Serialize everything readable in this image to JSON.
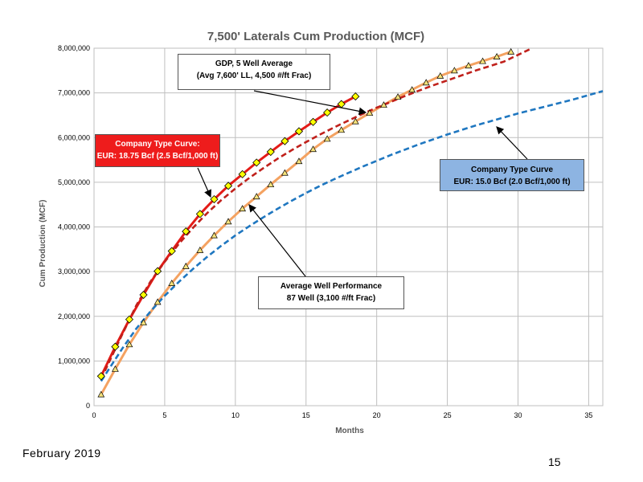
{
  "footer": {
    "date": "February  2019",
    "page": "15"
  },
  "colors": {
    "company_18_75": "#e41b17",
    "company_15": "#1f77c0",
    "gdp_marker_fill": "#ffff00",
    "average_well": "#f4a261",
    "average_dashed": "#c0201b",
    "average_marker_fill": "#f6e27a",
    "callout_red": "#ee1c1c",
    "callout_blue": "#8db4e2"
  },
  "callouts": {
    "gdp": {
      "line1": "GDP, 5 Well Average",
      "line2": "(Avg 7,600' LL, 4,500 #/ft Frac)"
    },
    "company_18_75": {
      "line1": "Company Type Curve:",
      "line2": "EUR: 18.75 Bcf (2.5 Bcf/1,000 ft)"
    },
    "company_15": {
      "line1": "Company Type Curve",
      "line2": "EUR: 15.0 Bcf (2.0 Bcf/1,000 ft)"
    },
    "average_well": {
      "line1": "Average Well Performance",
      "line2": "87 Well (3,100 #/ft Frac)"
    }
  },
  "chart_data": {
    "type": "line",
    "title": "7,500' Laterals Cum Production (MCF)",
    "xlabel": "Months",
    "ylabel": "Cum Production (MCF)",
    "xlim": [
      0,
      36
    ],
    "ylim": [
      0,
      8000000
    ],
    "x_ticks": [
      0,
      5,
      10,
      15,
      20,
      25,
      30,
      35
    ],
    "y_ticks": [
      0,
      1000000,
      2000000,
      3000000,
      4000000,
      5000000,
      6000000,
      7000000,
      8000000
    ],
    "x_tick_labels": [
      "0",
      "5",
      "10",
      "15",
      "20",
      "25",
      "30",
      "35"
    ],
    "y_tick_labels": [
      "0",
      "1,000,000",
      "2,000,000",
      "3,000,000",
      "4,000,000",
      "5,000,000",
      "6,000,000",
      "7,000,000",
      "8,000,000"
    ],
    "grid": true,
    "legend": "none",
    "series": [
      {
        "style": "solid",
        "color": "#e41b17",
        "marker": "diamond",
        "x": [
          0.5,
          1.5,
          2.5,
          3.5,
          4.5,
          5.5,
          6.5,
          7.5,
          8.5,
          9.5,
          10.5,
          11.5,
          12.5,
          13.5,
          14.5,
          15.5,
          16.5,
          17.5,
          18.5
        ],
        "y": [
          660000,
          1320000,
          1930000,
          2480000,
          3010000,
          3460000,
          3900000,
          4290000,
          4620000,
          4920000,
          5180000,
          5440000,
          5680000,
          5920000,
          6140000,
          6350000,
          6560000,
          6750000,
          6920000
        ]
      },
      {
        "style": "solid",
        "color": "#f4a261",
        "marker": "triangle",
        "x": [
          0.5,
          1.5,
          2.5,
          3.5,
          4.5,
          5.5,
          6.5,
          7.5,
          8.5,
          9.5,
          10.5,
          11.5,
          12.5,
          13.5,
          14.5,
          15.5,
          16.5,
          17.5,
          18.5,
          19.5,
          20.5,
          21.5,
          22.5,
          23.5,
          24.5,
          25.5,
          26.5,
          27.5,
          28.5,
          29.5
        ],
        "y": [
          250000,
          820000,
          1370000,
          1860000,
          2320000,
          2740000,
          3120000,
          3480000,
          3810000,
          4120000,
          4410000,
          4680000,
          4950000,
          5210000,
          5470000,
          5740000,
          5970000,
          6170000,
          6360000,
          6550000,
          6730000,
          6910000,
          7070000,
          7230000,
          7380000,
          7500000,
          7610000,
          7710000,
          7810000,
          7920000
        ]
      },
      {
        "style": "dashed",
        "color": "#c0201b",
        "x": [
          0.5,
          2,
          3,
          4,
          5,
          6,
          7,
          8,
          9,
          10,
          11,
          12,
          13,
          14,
          15,
          16,
          17,
          18,
          19,
          20,
          21,
          22,
          23,
          24,
          25,
          26,
          27,
          28,
          29,
          30,
          31
        ],
        "y": [
          600000,
          1600000,
          2250000,
          2780000,
          3220000,
          3620000,
          3980000,
          4310000,
          4600000,
          4860000,
          5100000,
          5320000,
          5530000,
          5720000,
          5900000,
          6070000,
          6230000,
          6380000,
          6530000,
          6670000,
          6800000,
          6930000,
          7050000,
          7170000,
          7280000,
          7390000,
          7500000,
          7600000,
          7700000,
          7850000,
          8000000
        ]
      },
      {
        "style": "dashed",
        "color": "#1f77c0",
        "x": [
          0.5,
          2,
          3,
          4,
          5,
          6,
          7,
          8,
          9,
          10,
          11,
          12,
          13,
          14,
          15,
          16,
          17,
          18,
          19,
          20,
          21,
          22,
          23,
          24,
          25,
          26,
          27,
          28,
          29,
          30,
          31,
          32,
          33,
          34,
          35,
          36
        ],
        "y": [
          550000,
          1280000,
          1730000,
          2110000,
          2460000,
          2770000,
          3060000,
          3330000,
          3580000,
          3810000,
          4020000,
          4220000,
          4410000,
          4590000,
          4760000,
          4920000,
          5070000,
          5210000,
          5350000,
          5480000,
          5610000,
          5730000,
          5850000,
          5960000,
          6070000,
          6170000,
          6270000,
          6360000,
          6450000,
          6540000,
          6620000,
          6700000,
          6780000,
          6860000,
          6950000,
          7040000
        ]
      }
    ]
  }
}
